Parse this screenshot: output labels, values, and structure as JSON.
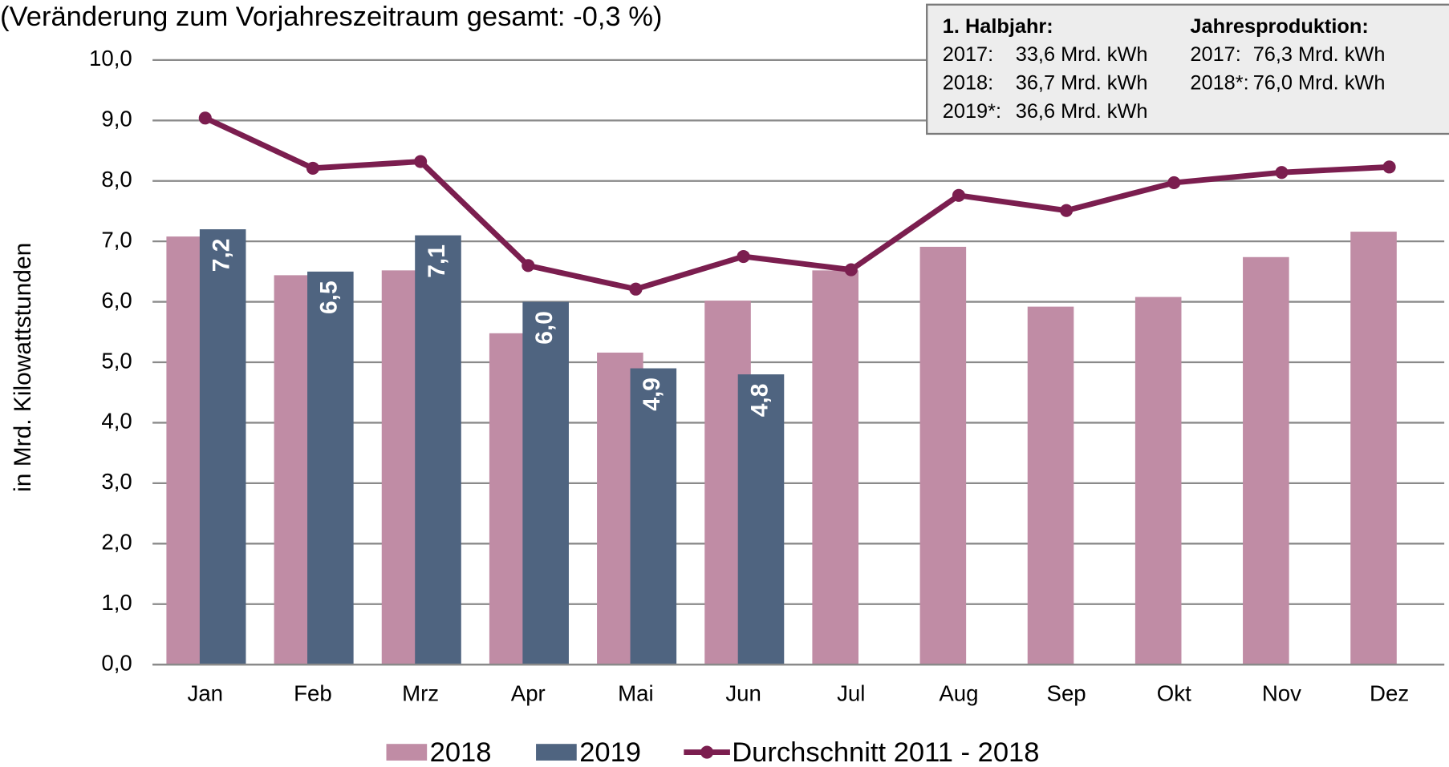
{
  "chart_data": {
    "type": "bar_line",
    "title": "(Veränderung zum Vorjahreszeitraum gesamt: -0,3 %)",
    "y_label": "in Mrd. Kilowattstunden",
    "categories": [
      "Jan",
      "Feb",
      "Mrz",
      "Apr",
      "Mai",
      "Jun",
      "Jul",
      "Aug",
      "Sep",
      "Okt",
      "Nov",
      "Dez"
    ],
    "series": [
      {
        "name": "2018",
        "type": "bar",
        "color": "#c08ca5",
        "values": [
          7.08,
          6.44,
          6.52,
          5.48,
          5.16,
          6.02,
          6.52,
          6.91,
          5.92,
          6.08,
          6.74,
          7.16
        ]
      },
      {
        "name": "2019",
        "type": "bar",
        "color": "#4f6480",
        "values": [
          7.2,
          6.5,
          7.1,
          6.0,
          4.9,
          4.8,
          null,
          null,
          null,
          null,
          null,
          null
        ],
        "value_labels": [
          "7,2",
          "6,5",
          "7,1",
          "6,0",
          "4,9",
          "4,8",
          null,
          null,
          null,
          null,
          null,
          null
        ]
      },
      {
        "name": "Durchschnitt 2011 - 2018",
        "type": "line",
        "color": "#7b1e4f",
        "values": [
          9.04,
          8.21,
          8.32,
          6.6,
          6.21,
          6.75,
          6.53,
          7.76,
          7.51,
          7.97,
          8.14,
          8.23
        ]
      }
    ],
    "ylim": [
      0,
      10
    ],
    "yticks": [
      {
        "value": 0,
        "label": "0,0"
      },
      {
        "value": 1,
        "label": "1,0"
      },
      {
        "value": 2,
        "label": "2,0"
      },
      {
        "value": 3,
        "label": "3,0"
      },
      {
        "value": 4,
        "label": "4,0"
      },
      {
        "value": 5,
        "label": "5,0"
      },
      {
        "value": 6,
        "label": "6,0"
      },
      {
        "value": 7,
        "label": "7,0"
      },
      {
        "value": 8,
        "label": "8,0"
      },
      {
        "value": 9,
        "label": "9,0"
      },
      {
        "value": 10,
        "label": "10,0"
      }
    ],
    "grid": true,
    "legend": "bottom",
    "info_box": {
      "left_title": "1. Halbjahr:",
      "left_rows": [
        [
          "2017:",
          "33,6 Mrd. kWh"
        ],
        [
          "2018:",
          "36,7 Mrd. kWh"
        ],
        [
          "2019*:",
          "36,6 Mrd. kWh"
        ]
      ],
      "right_title": "Jahresproduktion:",
      "right_rows": [
        [
          "2017:",
          "76,3 Mrd. kWh"
        ],
        [
          "2018*:",
          "76,0 Mrd. kWh"
        ]
      ]
    }
  }
}
